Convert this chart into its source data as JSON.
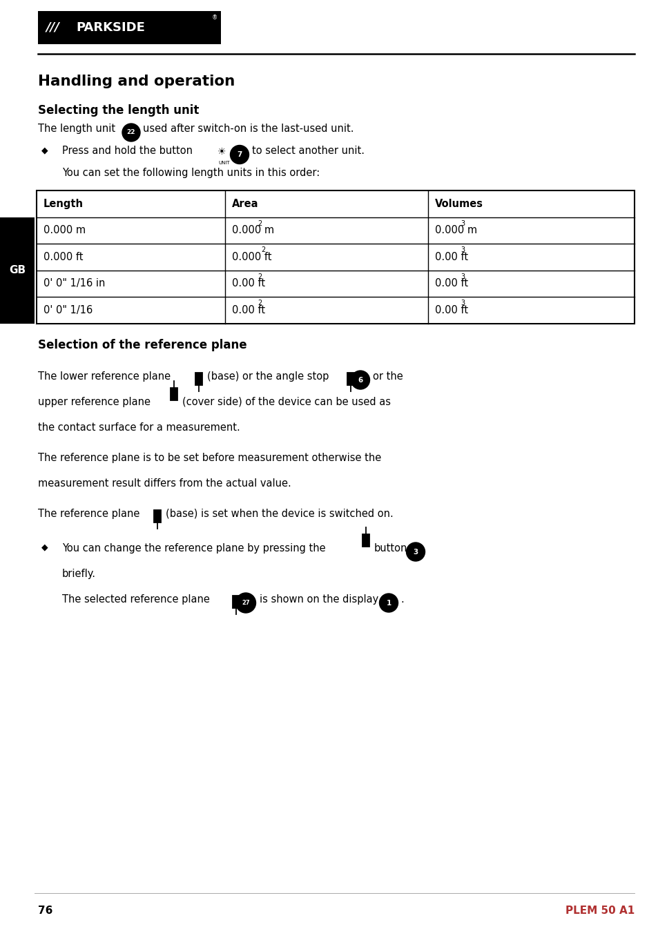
{
  "bg_color": "#ffffff",
  "page_width": 9.54,
  "page_height": 13.46,
  "text_color": "#000000",
  "header_bg": "#000000",
  "header_text": "#ffffff",
  "gb_bg": "#000000",
  "gb_text": "#ffffff",
  "section1_title": "Handling and operation",
  "section2_title": "Selecting the length unit",
  "section3_title": "Selection of the reference plane",
  "table_headers": [
    "Length",
    "Area",
    "Volumes"
  ],
  "table_rows": [
    [
      "0.000 m",
      "0.000 m",
      "2",
      "0.000 m",
      "3"
    ],
    [
      "0.000 ft",
      "0.000 ft",
      "2",
      "0.00 ft",
      "3"
    ],
    [
      "0' 0\" 1/16 in",
      "0.00 ft",
      "2",
      "0.00 ft",
      "3"
    ],
    [
      "0' 0\" 1/16",
      "0.00 ft",
      "2",
      "0.00 ft",
      "3"
    ]
  ],
  "gb_label": "GB",
  "page_num": "76",
  "page_model": "PLEM 50 A1"
}
